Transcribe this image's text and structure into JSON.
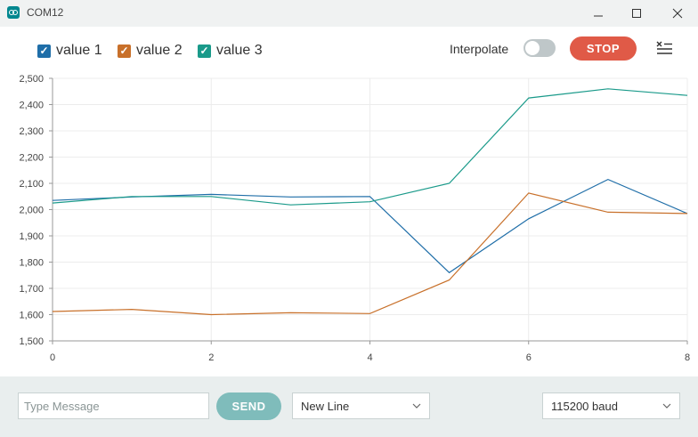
{
  "window": {
    "title": "COM12",
    "minimize_icon": "minimize-icon",
    "maximize_icon": "maximize-icon",
    "close_icon": "close-icon"
  },
  "toolbar": {
    "legend": [
      {
        "label": "value 1",
        "color": "#1f6ea8",
        "checked": true
      },
      {
        "label": "value 2",
        "color": "#c8702a",
        "checked": true
      },
      {
        "label": "value 3",
        "color": "#1a9a8a",
        "checked": true
      }
    ],
    "interpolate_label": "Interpolate",
    "interpolate_on": false,
    "stop_label": "STOP",
    "clear_icon": "clear-list-icon"
  },
  "chart_data": {
    "type": "line",
    "x": [
      0,
      1,
      2,
      3,
      4,
      5,
      6,
      7,
      8
    ],
    "xlim": [
      0,
      8
    ],
    "ylim": [
      1500,
      2500
    ],
    "x_ticks": [
      "0",
      "2",
      "4",
      "6",
      "8"
    ],
    "y_ticks": [
      "1,500",
      "1,600",
      "1,700",
      "1,800",
      "1,900",
      "2,000",
      "2,100",
      "2,200",
      "2,300",
      "2,400",
      "2,500"
    ],
    "grid": true,
    "series": [
      {
        "name": "value 1",
        "color": "#1f6ea8",
        "values": [
          2035,
          2048,
          2058,
          2048,
          2050,
          1760,
          1965,
          2115,
          1985
        ]
      },
      {
        "name": "value 2",
        "color": "#c8702a",
        "values": [
          1612,
          1620,
          1600,
          1607,
          1604,
          1732,
          2063,
          1990,
          1985
        ]
      },
      {
        "name": "value 3",
        "color": "#1a9a8a",
        "values": [
          2025,
          2050,
          2050,
          2018,
          2030,
          2100,
          2425,
          2460,
          2435
        ]
      }
    ]
  },
  "bottom": {
    "message_placeholder": "Type Message",
    "message_value": "",
    "send_label": "SEND",
    "line_ending": "New Line",
    "baud_rate": "115200 baud"
  }
}
